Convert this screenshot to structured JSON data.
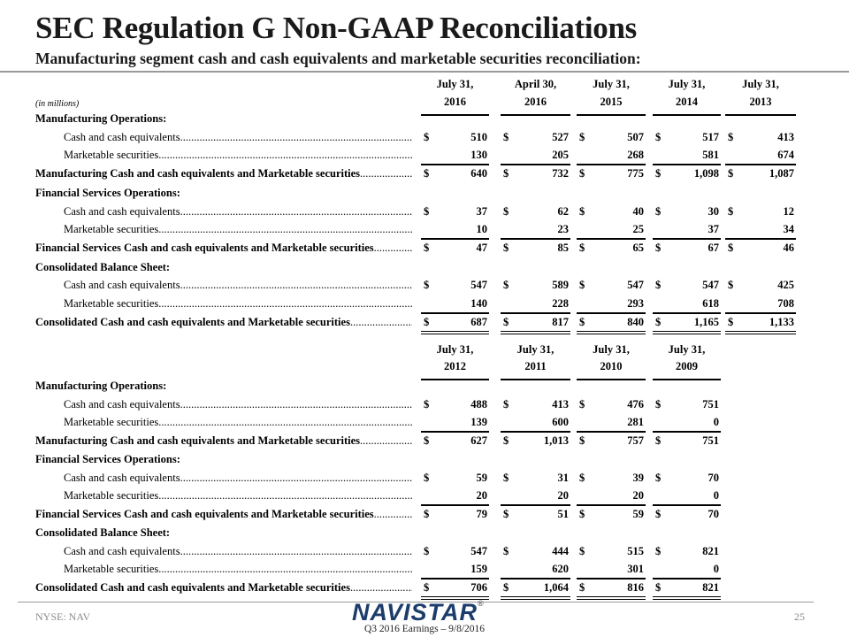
{
  "header": {
    "title": "SEC Regulation G Non-GAAP Reconciliations",
    "subtitle": "Manufacturing segment cash and cash equivalents and marketable securities reconciliation:"
  },
  "tables": [
    {
      "units": "(in millions)",
      "headers": [
        {
          "line1": "July 31,",
          "line2": "2016"
        },
        {
          "line1": "April 30,",
          "line2": "2016"
        },
        {
          "line1": "July 31,",
          "line2": "2015"
        },
        {
          "line1": "July 31,",
          "line2": "2014"
        },
        {
          "line1": "July 31,",
          "line2": "2013"
        }
      ],
      "sections": [
        {
          "title": "Manufacturing Operations:",
          "items": [
            {
              "label": "Cash and cash equivalents",
              "dollar": true,
              "values": [
                "510",
                "527",
                "507",
                "517",
                "413"
              ]
            },
            {
              "label": "Marketable securities",
              "dollar": false,
              "values": [
                "130",
                "205",
                "268",
                "581",
                "674"
              ]
            }
          ],
          "total": {
            "label": "Manufacturing Cash and cash equivalents and Marketable securities",
            "values": [
              "640",
              "732",
              "775",
              "1,098",
              "1,087"
            ]
          }
        },
        {
          "title": "Financial Services Operations:",
          "items": [
            {
              "label": "Cash and cash equivalents",
              "dollar": true,
              "values": [
                "37",
                "62",
                "40",
                "30",
                "12"
              ]
            },
            {
              "label": "Marketable securities",
              "dollar": false,
              "values": [
                "10",
                "23",
                "25",
                "37",
                "34"
              ]
            }
          ],
          "total": {
            "label": "Financial Services Cash and cash equivalents and Marketable securities",
            "values": [
              "47",
              "85",
              "65",
              "67",
              "46"
            ]
          }
        },
        {
          "title": "Consolidated Balance Sheet:",
          "items": [
            {
              "label": "Cash and cash equivalents",
              "dollar": true,
              "values": [
                "547",
                "589",
                "547",
                "547",
                "425"
              ]
            },
            {
              "label": "Marketable securities",
              "dollar": false,
              "values": [
                "140",
                "228",
                "293",
                "618",
                "708"
              ]
            }
          ],
          "total": {
            "label": "Consolidated Cash and cash equivalents and Marketable securities",
            "values": [
              "687",
              "817",
              "840",
              "1,165",
              "1,133"
            ]
          }
        }
      ]
    },
    {
      "units": "",
      "headers": [
        {
          "line1": "July 31,",
          "line2": "2012"
        },
        {
          "line1": "July 31,",
          "line2": "2011"
        },
        {
          "line1": "July 31,",
          "line2": "2010"
        },
        {
          "line1": "July 31,",
          "line2": "2009"
        }
      ],
      "sections": [
        {
          "title": "Manufacturing Operations:",
          "items": [
            {
              "label": "Cash and cash equivalents",
              "dollar": true,
              "values": [
                "488",
                "413",
                "476",
                "751"
              ]
            },
            {
              "label": "Marketable securities",
              "dollar": false,
              "values": [
                "139",
                "600",
                "281",
                "0"
              ]
            }
          ],
          "total": {
            "label": "Manufacturing Cash and cash equivalents and Marketable securities",
            "values": [
              "627",
              "1,013",
              "757",
              "751"
            ]
          }
        },
        {
          "title": "Financial Services Operations:",
          "items": [
            {
              "label": "Cash and cash equivalents",
              "dollar": true,
              "values": [
                "59",
                "31",
                "39",
                "70"
              ]
            },
            {
              "label": "Marketable securities",
              "dollar": false,
              "values": [
                "20",
                "20",
                "20",
                "0"
              ]
            }
          ],
          "total": {
            "label": "Financial Services Cash and cash equivalents and Marketable securities",
            "values": [
              "79",
              "51",
              "59",
              "70"
            ]
          }
        },
        {
          "title": "Consolidated Balance Sheet:",
          "items": [
            {
              "label": "Cash and cash equivalents",
              "dollar": true,
              "values": [
                "547",
                "444",
                "515",
                "821"
              ]
            },
            {
              "label": "Marketable securities",
              "dollar": false,
              "values": [
                "159",
                "620",
                "301",
                "0"
              ]
            }
          ],
          "total": {
            "label": "Consolidated Cash and cash equivalents and Marketable securities",
            "values": [
              "706",
              "1,064",
              "816",
              "821"
            ]
          }
        }
      ]
    }
  ],
  "currency_symbol": "$",
  "footer": {
    "ticker": "NYSE: NAV",
    "logo_text": "NAVISTAR",
    "logo_mark": "®",
    "event": "Q3 2016 Earnings – 9/8/2016",
    "page_number": "25"
  },
  "colors": {
    "logo": "#1c3d6b",
    "rule": "#9a9a9a",
    "footer_text": "#8a8a8a"
  }
}
